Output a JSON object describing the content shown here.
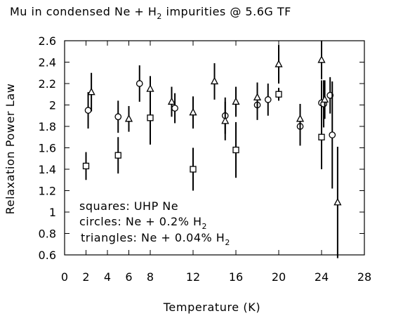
{
  "chart_data": {
    "type": "scatter",
    "title": {
      "main": "Mu in condensed Ne + H",
      "sub": "2",
      "tail": " impurities @ 5.6G TF"
    },
    "xlabel": "Temperature (K)",
    "ylabel": "Relaxation Power Law",
    "xlim": [
      0,
      28
    ],
    "ylim": [
      0.6,
      2.6
    ],
    "x_ticks": [
      0,
      2,
      4,
      6,
      8,
      12,
      16,
      20,
      24,
      28
    ],
    "x_tick_labels": [
      "0",
      "2",
      "4",
      "6",
      "8",
      "12",
      "16",
      "20",
      "24",
      "28"
    ],
    "y_ticks": [
      0.6,
      0.8,
      1.0,
      1.2,
      1.4,
      1.6,
      1.8,
      2.0,
      2.2,
      2.4,
      2.6
    ],
    "y_tick_labels": [
      "0.6",
      "0.8",
      "1",
      "1.2",
      "1.4",
      "1.6",
      "1.8",
      "2",
      "2.2",
      "2.4",
      "2.6"
    ],
    "grid": false,
    "legend_text": {
      "squares": "squares: UHP Ne",
      "circles": {
        "text": "circles: Ne + 0.2% H",
        "sub": "2"
      },
      "triangles": {
        "text": "triangles: Ne + 0.04% H",
        "sub": "2"
      }
    },
    "series": [
      {
        "marker": "square",
        "points": [
          {
            "x": 2.0,
            "y": 1.43,
            "err": 0.13
          },
          {
            "x": 5.0,
            "y": 1.53,
            "err": 0.17
          },
          {
            "x": 8.0,
            "y": 1.88,
            "err": 0.25
          },
          {
            "x": 12.0,
            "y": 1.4,
            "err": 0.2
          },
          {
            "x": 16.0,
            "y": 1.58,
            "err": 0.26
          },
          {
            "x": 20.0,
            "y": 2.1,
            "err": 0.06
          },
          {
            "x": 24.0,
            "y": 1.7,
            "err": 0.3
          }
        ]
      },
      {
        "marker": "circle",
        "points": [
          {
            "x": 2.2,
            "y": 1.95,
            "err": 0.17
          },
          {
            "x": 5.0,
            "y": 1.89,
            "err": 0.15
          },
          {
            "x": 7.0,
            "y": 2.2,
            "err": 0.17
          },
          {
            "x": 10.3,
            "y": 1.97,
            "err": 0.14
          },
          {
            "x": 15.0,
            "y": 1.9,
            "err": 0.17
          },
          {
            "x": 18.0,
            "y": 2.0,
            "err": 0.14
          },
          {
            "x": 19.0,
            "y": 2.05,
            "err": 0.15
          },
          {
            "x": 22.0,
            "y": 1.8,
            "err": 0.18
          },
          {
            "x": 24.0,
            "y": 2.02,
            "err": 0.21
          },
          {
            "x": 24.2,
            "y": 2.01,
            "err": 0.22
          },
          {
            "x": 24.8,
            "y": 2.09,
            "err": 0.17
          },
          {
            "x": 25.0,
            "y": 1.72,
            "err": 0.5
          }
        ]
      },
      {
        "marker": "triangle",
        "points": [
          {
            "x": 2.5,
            "y": 2.12,
            "err": 0.18
          },
          {
            "x": 6.0,
            "y": 1.87,
            "err": 0.12
          },
          {
            "x": 8.0,
            "y": 2.15,
            "err": 0.12
          },
          {
            "x": 10.0,
            "y": 2.03,
            "err": 0.14
          },
          {
            "x": 12.0,
            "y": 1.93,
            "err": 0.15
          },
          {
            "x": 14.0,
            "y": 2.22,
            "err": 0.17
          },
          {
            "x": 15.0,
            "y": 1.85,
            "err": 0.18
          },
          {
            "x": 16.0,
            "y": 2.03,
            "err": 0.14
          },
          {
            "x": 18.0,
            "y": 2.07,
            "err": 0.14
          },
          {
            "x": 20.0,
            "y": 2.38,
            "err": 0.18
          },
          {
            "x": 22.0,
            "y": 1.87,
            "err": 0.14
          },
          {
            "x": 24.0,
            "y": 2.42,
            "err": 0.18
          },
          {
            "x": 24.3,
            "y": 2.05,
            "err": 0.18
          },
          {
            "x": 25.5,
            "y": 1.09,
            "err": 0.52
          }
        ]
      }
    ]
  }
}
